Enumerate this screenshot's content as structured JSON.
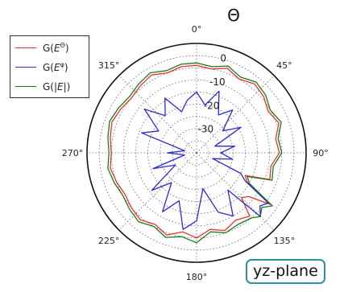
{
  "chart_data": {
    "type": "polar-line",
    "title": "Θ",
    "angle_labels": [
      "0°",
      "45°",
      "90°",
      "135°",
      "180°",
      "225°",
      "270°",
      "315°"
    ],
    "radial_tick_labels": [
      "0",
      "-10",
      "-20",
      "-30"
    ],
    "radial_range": [
      -40,
      5
    ],
    "grid": true,
    "legend_position": "top-left",
    "annotation": "yz-plane",
    "angles_deg": [
      0,
      10,
      20,
      30,
      40,
      50,
      60,
      70,
      80,
      90,
      100,
      110,
      115,
      120,
      125,
      130,
      135,
      140,
      150,
      160,
      170,
      180,
      190,
      200,
      210,
      220,
      230,
      240,
      250,
      260,
      270,
      280,
      290,
      300,
      310,
      320,
      330,
      340,
      350
    ],
    "series": [
      {
        "name": "G(E^Θ)",
        "label_base": "G(",
        "label_sym": "E",
        "label_sup": "Θ",
        "label_end": ")",
        "color": "#e8312f",
        "values": [
          -4,
          -5,
          -3,
          -5,
          -3,
          -4,
          -6,
          -4,
          -7,
          -6,
          -9,
          -8,
          -18,
          -16,
          -3,
          -12,
          -14,
          -6,
          -8,
          -6,
          -8,
          -5,
          -7,
          -4,
          -6,
          -4,
          -5,
          -6,
          -5,
          -4,
          -5,
          -4,
          -3,
          -4,
          -5,
          -4,
          -3,
          -5,
          -4
        ]
      },
      {
        "name": "G(E^φ)",
        "label_base": "G(",
        "label_sym": "E",
        "label_sup": "φ",
        "label_end": ")",
        "color": "#2b2bd6",
        "values": [
          -15,
          -20,
          -13,
          -22,
          -17,
          -26,
          -19,
          -32,
          -24,
          -30,
          -25,
          -33,
          -20,
          -17,
          -4,
          -6,
          -3,
          -20,
          -10,
          -14,
          -25,
          -12,
          -8,
          -19,
          -12,
          -24,
          -16,
          -30,
          -21,
          -35,
          -28,
          -35,
          -16,
          -22,
          -12,
          -20,
          -14,
          -22,
          -18
        ]
      },
      {
        "name": "G(|E|)",
        "label_base": "G(|",
        "label_sym": "E",
        "label_sup": "",
        "label_end": "|)",
        "color": "#1a7a1a",
        "values": [
          -3,
          -4,
          -2,
          -4,
          -2,
          -3,
          -5,
          -3,
          -6,
          -5,
          -8,
          -7,
          -17,
          -15,
          -2,
          -5,
          -3,
          -5,
          -6,
          -5,
          -7,
          -3,
          -5,
          -3,
          -5,
          -3,
          -4,
          -5,
          -4,
          -3,
          -4,
          -3,
          -2,
          -3,
          -4,
          -3,
          -2,
          -4,
          -3
        ]
      }
    ]
  }
}
